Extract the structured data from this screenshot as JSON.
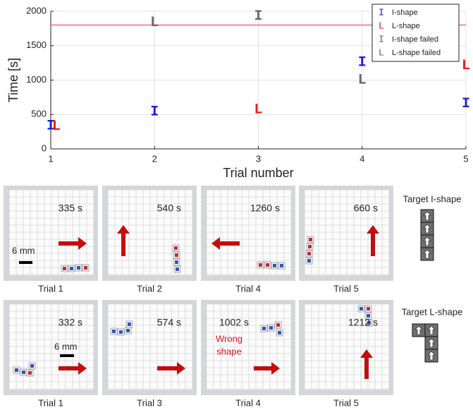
{
  "chart_data": {
    "type": "scatter",
    "x_label": "Trial number",
    "y_label": "Time [s]",
    "xlim": [
      1,
      5
    ],
    "xticks": [
      1,
      2,
      3,
      4,
      5
    ],
    "ylim": [
      0,
      2000
    ],
    "yticks": [
      0,
      500,
      1000,
      1500,
      2000
    ],
    "grid": true,
    "hline": 1800,
    "hline_color": "#f26b6b",
    "legend": "upper right",
    "series": [
      {
        "name": "I-shape",
        "marker": "I",
        "color": "#1c1cd6",
        "x": [
          1,
          2,
          4,
          5
        ],
        "values": [
          335,
          540,
          1260,
          660
        ]
      },
      {
        "name": "L-shape",
        "marker": "L",
        "color": "#e51b1b",
        "x": [
          1,
          3,
          5
        ],
        "values": [
          332,
          574,
          1212
        ]
      },
      {
        "name": "I-shape failed",
        "marker": "I",
        "color": "#666666",
        "x": [
          3
        ],
        "values": [
          1930
        ]
      },
      {
        "name": "L-shape failed",
        "marker": "L",
        "color": "#666666",
        "x": [
          2,
          4
        ],
        "values": [
          1840,
          1002
        ]
      }
    ]
  },
  "photos": {
    "scale_label": "6 mm",
    "note": [
      "Wrong",
      "shape"
    ],
    "rows": [
      {
        "target": "Target I-shape",
        "panels": [
          {
            "time": "335 s",
            "caption": "Trial 1"
          },
          {
            "time": "540 s",
            "caption": "Trial 2"
          },
          {
            "time": "1260 s",
            "caption": "Trial 4"
          },
          {
            "time": "660 s",
            "caption": "Trial 5"
          }
        ]
      },
      {
        "target": "Target L-shape",
        "panels": [
          {
            "time": "332 s",
            "caption": "Trial 1"
          },
          {
            "time": "574 s",
            "caption": "Trial 3"
          },
          {
            "time": "1002 s",
            "caption": "Trial 4"
          },
          {
            "time": "1212 s",
            "caption": "Trial 5"
          }
        ]
      }
    ]
  }
}
